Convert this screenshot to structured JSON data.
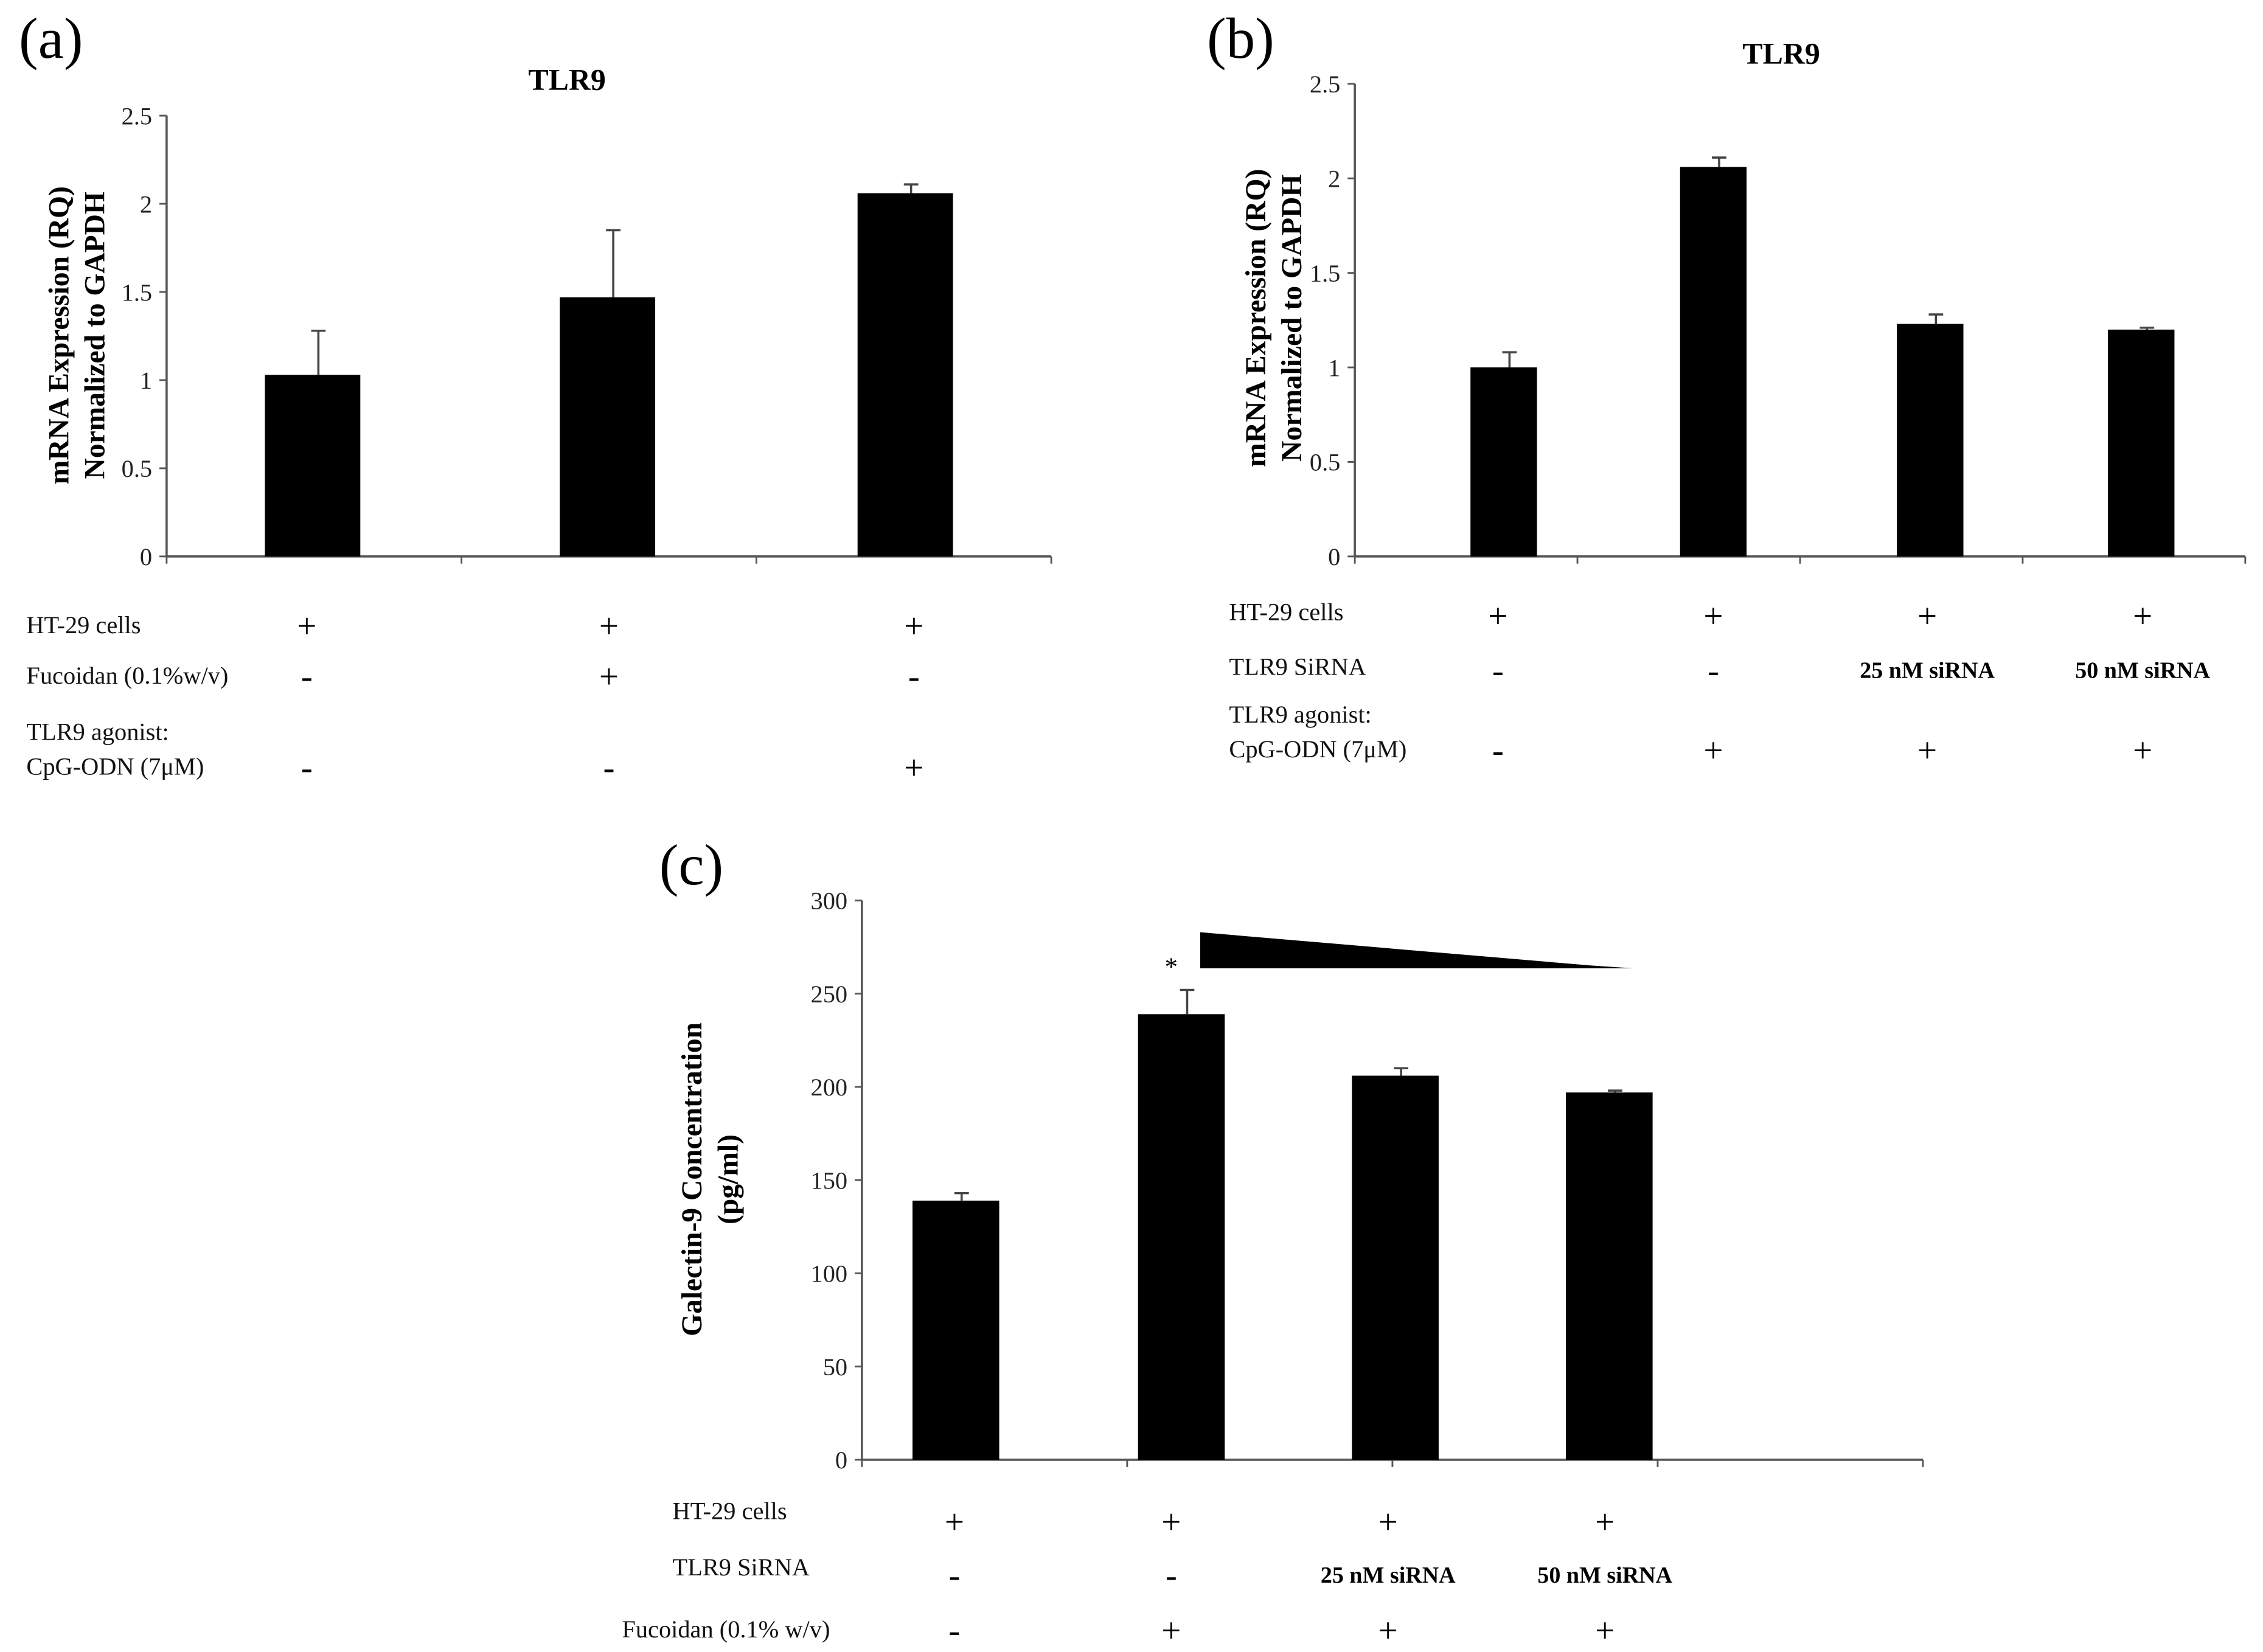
{
  "chart_data": [
    {
      "panel": "(a)",
      "type": "bar",
      "title": "TLR9",
      "ylabel": [
        "mRNA Expression (RQ)",
        "Normalized to GAPDH"
      ],
      "ylim": [
        0,
        2.5
      ],
      "yticks": [
        "0",
        "0.5",
        "1",
        "1.5",
        "2",
        "2.5"
      ],
      "ytick_values": [
        0,
        0.5,
        1,
        1.5,
        2,
        2.5
      ],
      "values": [
        1.03,
        1.47,
        2.06
      ],
      "error_upper": [
        1.28,
        1.85,
        2.11
      ],
      "color": "#000000",
      "conditions": [
        {
          "label": [
            "HT-29 cells"
          ],
          "cells": [
            "+",
            "+",
            "+"
          ]
        },
        {
          "label": [
            "Fucoidan (0.1%w/v)"
          ],
          "cells": [
            "-",
            "+",
            "-"
          ]
        },
        {
          "label": [
            "TLR9 agonist:",
            "CpG-ODN (7μM)"
          ],
          "cells": [
            "-",
            "-",
            "+"
          ]
        }
      ]
    },
    {
      "panel": "(b)",
      "type": "bar",
      "title": "TLR9",
      "ylabel": [
        "mRNA Expression (RQ)",
        "Normalized to GAPDH"
      ],
      "ylim": [
        0,
        2.5
      ],
      "yticks": [
        "0",
        "0.5",
        "1",
        "1.5",
        "2",
        "2.5"
      ],
      "ytick_values": [
        0,
        0.5,
        1,
        1.5,
        2,
        2.5
      ],
      "values": [
        1.0,
        2.06,
        1.23,
        1.2
      ],
      "error_upper": [
        1.08,
        2.11,
        1.28,
        1.21
      ],
      "color": "#000000",
      "conditions": [
        {
          "label": [
            "HT-29 cells"
          ],
          "cells": [
            "+",
            "+",
            "+",
            "+"
          ]
        },
        {
          "label": [
            "TLR9 SiRNA"
          ],
          "cells": [
            "-",
            "-",
            "25 nM siRNA",
            "50 nM siRNA"
          ]
        },
        {
          "label": [
            "TLR9 agonist:",
            "CpG-ODN (7μM)"
          ],
          "cells": [
            "-",
            "+",
            "+",
            "+"
          ]
        }
      ]
    },
    {
      "panel": "(c)",
      "type": "bar",
      "title": "",
      "ylabel": [
        "Galectin-9 Concentration",
        "(pg/ml)"
      ],
      "ylim": [
        0,
        300
      ],
      "yticks": [
        "0",
        "50",
        "100",
        "150",
        "200",
        "250",
        "300"
      ],
      "ytick_values": [
        0,
        50,
        100,
        150,
        200,
        250,
        300
      ],
      "values": [
        139,
        239,
        206,
        197
      ],
      "error_upper": [
        143,
        252,
        210,
        198
      ],
      "annotations": [
        {
          "bar": 1,
          "text": "*"
        }
      ],
      "gradient_wedge": {
        "from_bar": 1,
        "to_bar": 3,
        "meaning": "decreasing"
      },
      "color": "#000000",
      "conditions": [
        {
          "label": [
            "HT-29 cells"
          ],
          "cells": [
            "+",
            "+",
            "+",
            "+"
          ]
        },
        {
          "label": [
            "TLR9 SiRNA"
          ],
          "cells": [
            "-",
            "-",
            "25 nM siRNA",
            "50 nM siRNA"
          ]
        },
        {
          "label": [
            "Fucoidan (0.1% w/v)"
          ],
          "cells": [
            "-",
            "+",
            "+",
            "+"
          ]
        }
      ]
    }
  ]
}
